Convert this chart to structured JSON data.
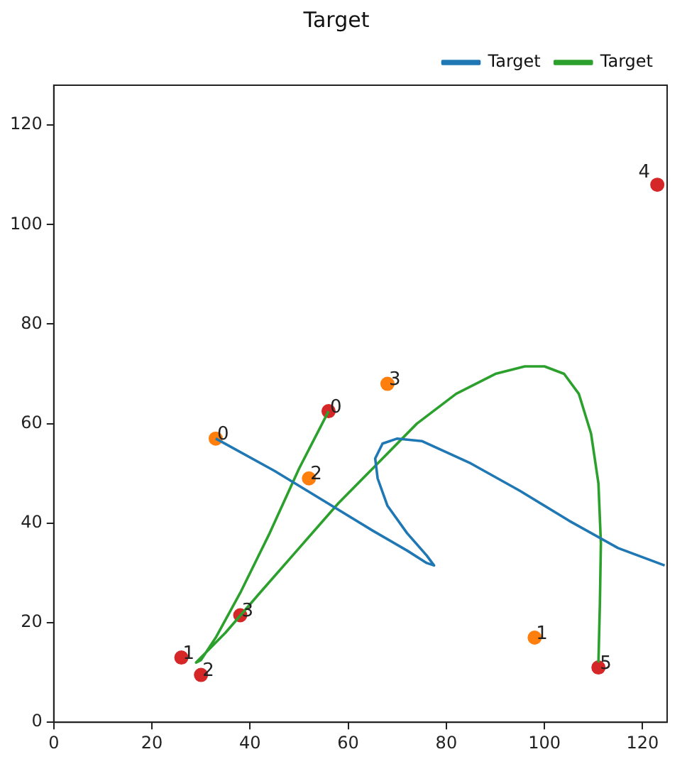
{
  "chart_data": {
    "type": "line",
    "title": "Target",
    "xlim": [
      0,
      125
    ],
    "ylim": [
      0,
      128
    ],
    "xticks": [
      0,
      20,
      40,
      60,
      80,
      100,
      120
    ],
    "yticks": [
      0,
      20,
      40,
      60,
      80,
      100,
      120
    ],
    "grid": false,
    "legend": "top right",
    "marker": "none",
    "line_style": "solid",
    "series": [
      {
        "name": "Target",
        "color": "#1f77b4",
        "x": [
          33,
          45,
          55,
          65,
          72,
          76,
          77.5,
          76,
          72,
          68,
          66,
          65.5,
          67,
          70,
          75,
          85,
          95,
          105,
          115,
          124.5
        ],
        "values": [
          57,
          50.5,
          44.5,
          38.5,
          34.5,
          32,
          31.5,
          33.5,
          38,
          43.5,
          49,
          53,
          56,
          57,
          56.5,
          52,
          46.5,
          40.5,
          35,
          31.5
        ]
      },
      {
        "name": "Target",
        "color": "#2ca02c",
        "x": [
          56,
          50,
          44,
          38,
          33,
          30,
          29,
          30,
          35,
          42,
          50,
          58,
          66,
          74,
          82,
          90,
          96,
          100,
          104,
          107,
          109.5,
          111,
          111.5,
          111.3,
          111
        ],
        "values": [
          62.5,
          51,
          38,
          26,
          17,
          12.5,
          12,
          13,
          18,
          26,
          35,
          44,
          52,
          60,
          66,
          70,
          71.5,
          71.5,
          70,
          66,
          58,
          48,
          36,
          24,
          12
        ]
      },
      {
        "type": "scatter",
        "color": "#ff7f0e",
        "marker": "circle",
        "x": [
          33,
          98,
          52,
          68
        ],
        "values": [
          57,
          17,
          49,
          68
        ]
      },
      {
        "type": "scatter",
        "color": "#d62728",
        "marker": "circle",
        "x": [
          56,
          26,
          30,
          38,
          123,
          111
        ],
        "values": [
          62.5,
          13,
          9.5,
          21.5,
          108,
          11
        ]
      }
    ],
    "annotations": [
      {
        "text": "0",
        "x": 33,
        "y": 57
      },
      {
        "text": "1",
        "x": 98,
        "y": 17
      },
      {
        "text": "2",
        "x": 52,
        "y": 49
      },
      {
        "text": "3",
        "x": 68,
        "y": 68
      },
      {
        "text": "0",
        "x": 56,
        "y": 62.5
      },
      {
        "text": "1",
        "x": 26,
        "y": 13
      },
      {
        "text": "2",
        "x": 30,
        "y": 9.5
      },
      {
        "text": "3",
        "x": 38,
        "y": 21.5
      },
      {
        "text": "4",
        "x": 123,
        "y": 108
      },
      {
        "text": "5",
        "x": 111,
        "y": 11
      }
    ]
  }
}
